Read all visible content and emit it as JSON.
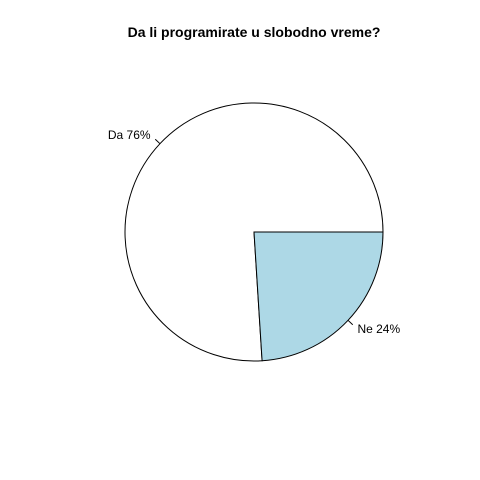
{
  "chart_data": {
    "type": "pie",
    "title": "Da li programirate u slobodno vreme?",
    "slices": [
      {
        "label": "Da 76%",
        "value": 76,
        "color": "#ffffff"
      },
      {
        "label": "Ne 24%",
        "value": 24,
        "color": "#add8e6"
      }
    ]
  }
}
